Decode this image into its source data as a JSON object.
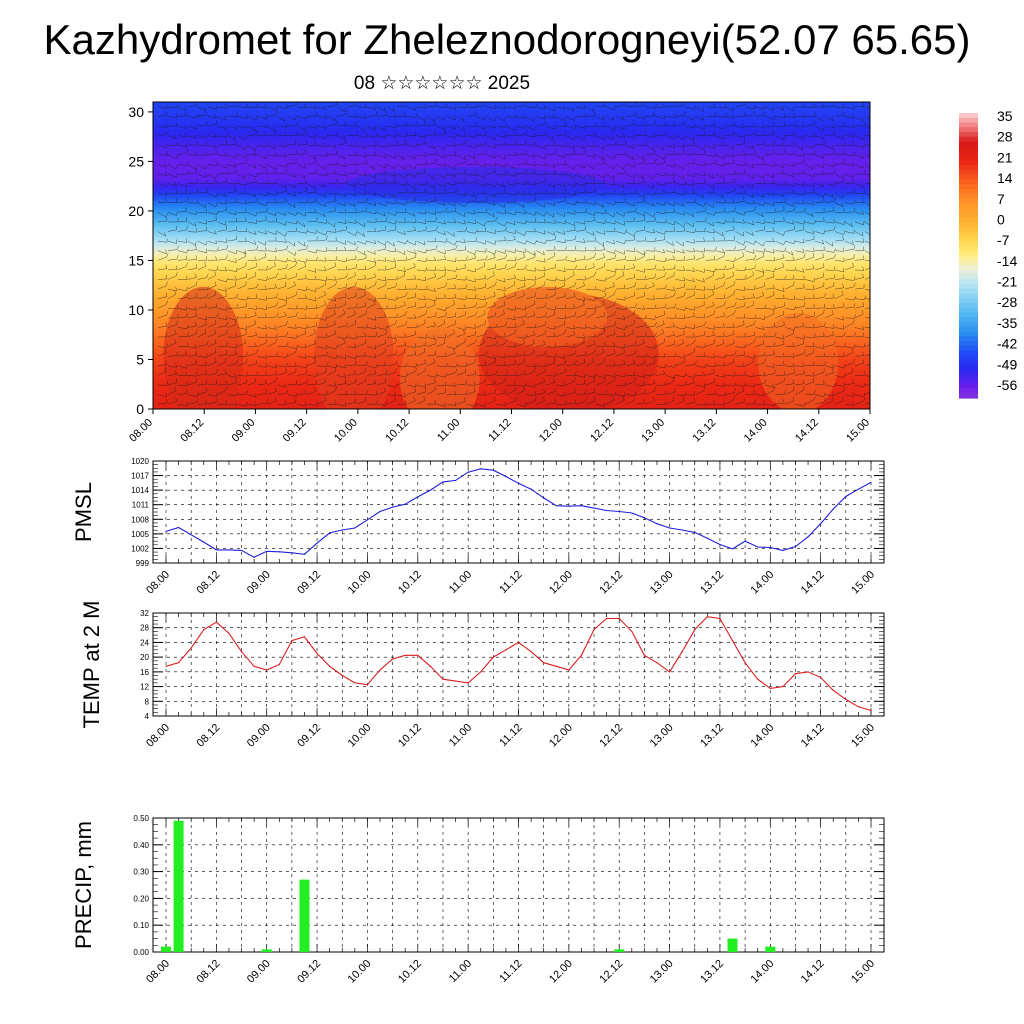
{
  "header": {
    "title": "Kazhydromet for Zheleznodorogneyi(52.07 65.65)",
    "subtitle": "08 ☆☆☆☆☆☆ 2025"
  },
  "chart_data": [
    {
      "id": "cross-section",
      "type": "heatmap",
      "title": "",
      "xlabel": "",
      "ylabel": "",
      "x_tick_labels": [
        "08.00",
        "08.12",
        "09.00",
        "09.12",
        "10.00",
        "10.12",
        "11.00",
        "11.12",
        "12.00",
        "12.12",
        "13.00",
        "13.12",
        "14.00",
        "14.12",
        "15.00"
      ],
      "ylim": [
        0,
        31
      ],
      "y_ticks": [
        0,
        5,
        10,
        15,
        20,
        25,
        30
      ],
      "colorbar": {
        "labels": [
          "35",
          "28",
          "21",
          "14",
          "7",
          "0",
          "-7",
          "-14",
          "-21",
          "-28",
          "-35",
          "-42",
          "-49",
          "-56"
        ],
        "range": [
          -60,
          38
        ]
      },
      "overlay": "wind barbs",
      "temperature_profile": {
        "heights": [
          0,
          5,
          10,
          12.5,
          15,
          17,
          19,
          21,
          23,
          25,
          27,
          29,
          31
        ],
        "temps": [
          24,
          18,
          6,
          -2,
          -10,
          -22,
          -32,
          -42,
          -55,
          -56,
          -52,
          -48,
          -46
        ]
      }
    },
    {
      "id": "pmsl",
      "type": "line",
      "ylabel": "PMSL",
      "x_tick_labels": [
        "08.00",
        "08.12",
        "09.00",
        "09.12",
        "10.00",
        "10.12",
        "11.00",
        "11.12",
        "12.00",
        "12.12",
        "13.00",
        "13.12",
        "14.00",
        "14.12",
        "15.00"
      ],
      "y_tick_labels": [
        "1020",
        "1017",
        "1014",
        "1011",
        "1008",
        "1005",
        "1002",
        "999"
      ],
      "ylim": [
        999,
        1020
      ],
      "color": "#1f1fd8",
      "x": [
        0,
        3,
        6,
        9,
        12,
        15,
        18,
        21,
        24,
        27,
        30,
        33,
        36,
        39,
        42,
        45,
        48,
        51,
        54,
        57,
        60,
        63,
        66,
        69,
        72,
        75,
        78,
        81,
        84,
        87,
        90,
        93,
        96,
        99,
        102,
        105,
        108,
        111,
        114,
        117,
        120,
        123,
        126,
        129,
        132,
        135,
        138,
        141,
        144,
        147,
        150,
        153,
        156,
        159,
        162,
        165,
        168
      ],
      "values": [
        1005.5,
        1006.3,
        1004.8,
        1003.3,
        1001.7,
        1001.7,
        1001.6,
        1000.2,
        1001.4,
        1001.3,
        1001.1,
        1000.8,
        1003.1,
        1005.2,
        1005.8,
        1006.2,
        1007.9,
        1009.6,
        1010.5,
        1011.1,
        1012.6,
        1014.0,
        1015.7,
        1016.0,
        1017.7,
        1018.4,
        1018.1,
        1016.8,
        1015.4,
        1014.2,
        1012.4,
        1010.8,
        1010.7,
        1010.8,
        1010.3,
        1009.8,
        1009.6,
        1009.3,
        1008.3,
        1007.1,
        1006.2,
        1005.8,
        1005.3,
        1004.1,
        1002.8,
        1001.9,
        1003.5,
        1002.3,
        1002.2,
        1001.6,
        1002.4,
        1004.4,
        1007.1,
        1010.1,
        1012.7,
        1014.2,
        1015.6
      ]
    },
    {
      "id": "temp2m",
      "type": "line",
      "ylabel": "TEMP at 2 M",
      "x_tick_labels": [
        "08.00",
        "08.12",
        "09.00",
        "09.12",
        "10.00",
        "10.12",
        "11.00",
        "11.12",
        "12.00",
        "12.12",
        "13.00",
        "13.12",
        "14.00",
        "14.12",
        "15.00"
      ],
      "y_tick_labels": [
        "32",
        "28",
        "24",
        "20",
        "16",
        "12",
        "8",
        "4"
      ],
      "ylim": [
        4,
        32
      ],
      "color": "#d81f1f",
      "x": [
        0,
        3,
        6,
        9,
        12,
        15,
        18,
        21,
        24,
        27,
        30,
        33,
        36,
        39,
        42,
        45,
        48,
        51,
        54,
        57,
        60,
        63,
        66,
        69,
        72,
        75,
        78,
        81,
        84,
        87,
        90,
        93,
        96,
        99,
        102,
        105,
        108,
        111,
        114,
        117,
        120,
        123,
        126,
        129,
        132,
        135,
        138,
        141,
        144,
        147,
        150,
        153,
        156,
        159,
        162,
        165,
        168
      ],
      "values": [
        17.5,
        18.5,
        22.5,
        27.5,
        29.5,
        26.5,
        21.5,
        17.5,
        16.5,
        18,
        24.5,
        25.5,
        21,
        17.5,
        15,
        13,
        12.5,
        16.5,
        19.5,
        20.5,
        20.5,
        17.5,
        14,
        13.5,
        13,
        16,
        20,
        22,
        24,
        21.5,
        18.5,
        17.5,
        16.5,
        20.5,
        27.5,
        30.5,
        30.5,
        27,
        20.5,
        18.5,
        16,
        21.5,
        27.5,
        31,
        30.5,
        24.5,
        18.5,
        14,
        11.5,
        12,
        15.5,
        16,
        14.5,
        11,
        8.5,
        6.5,
        5.5
      ]
    },
    {
      "id": "precip",
      "type": "bar",
      "ylabel": "PRECIP, mm",
      "x_tick_labels": [
        "08.00",
        "08.12",
        "09.00",
        "09.12",
        "10.00",
        "10.12",
        "11.00",
        "11.12",
        "12.00",
        "12.12",
        "13.00",
        "13.12",
        "14.00",
        "14.12",
        "15.00"
      ],
      "y_tick_labels": [
        "0.50",
        "0.40",
        "0.30",
        "0.20",
        "0.10",
        "0.00"
      ],
      "ylim": [
        0,
        0.5
      ],
      "color": "#22ee22",
      "x": [
        0,
        3,
        24,
        33,
        108,
        135,
        144
      ],
      "values": [
        0.02,
        0.49,
        0.01,
        0.27,
        0.01,
        0.05,
        0.02
      ]
    }
  ]
}
